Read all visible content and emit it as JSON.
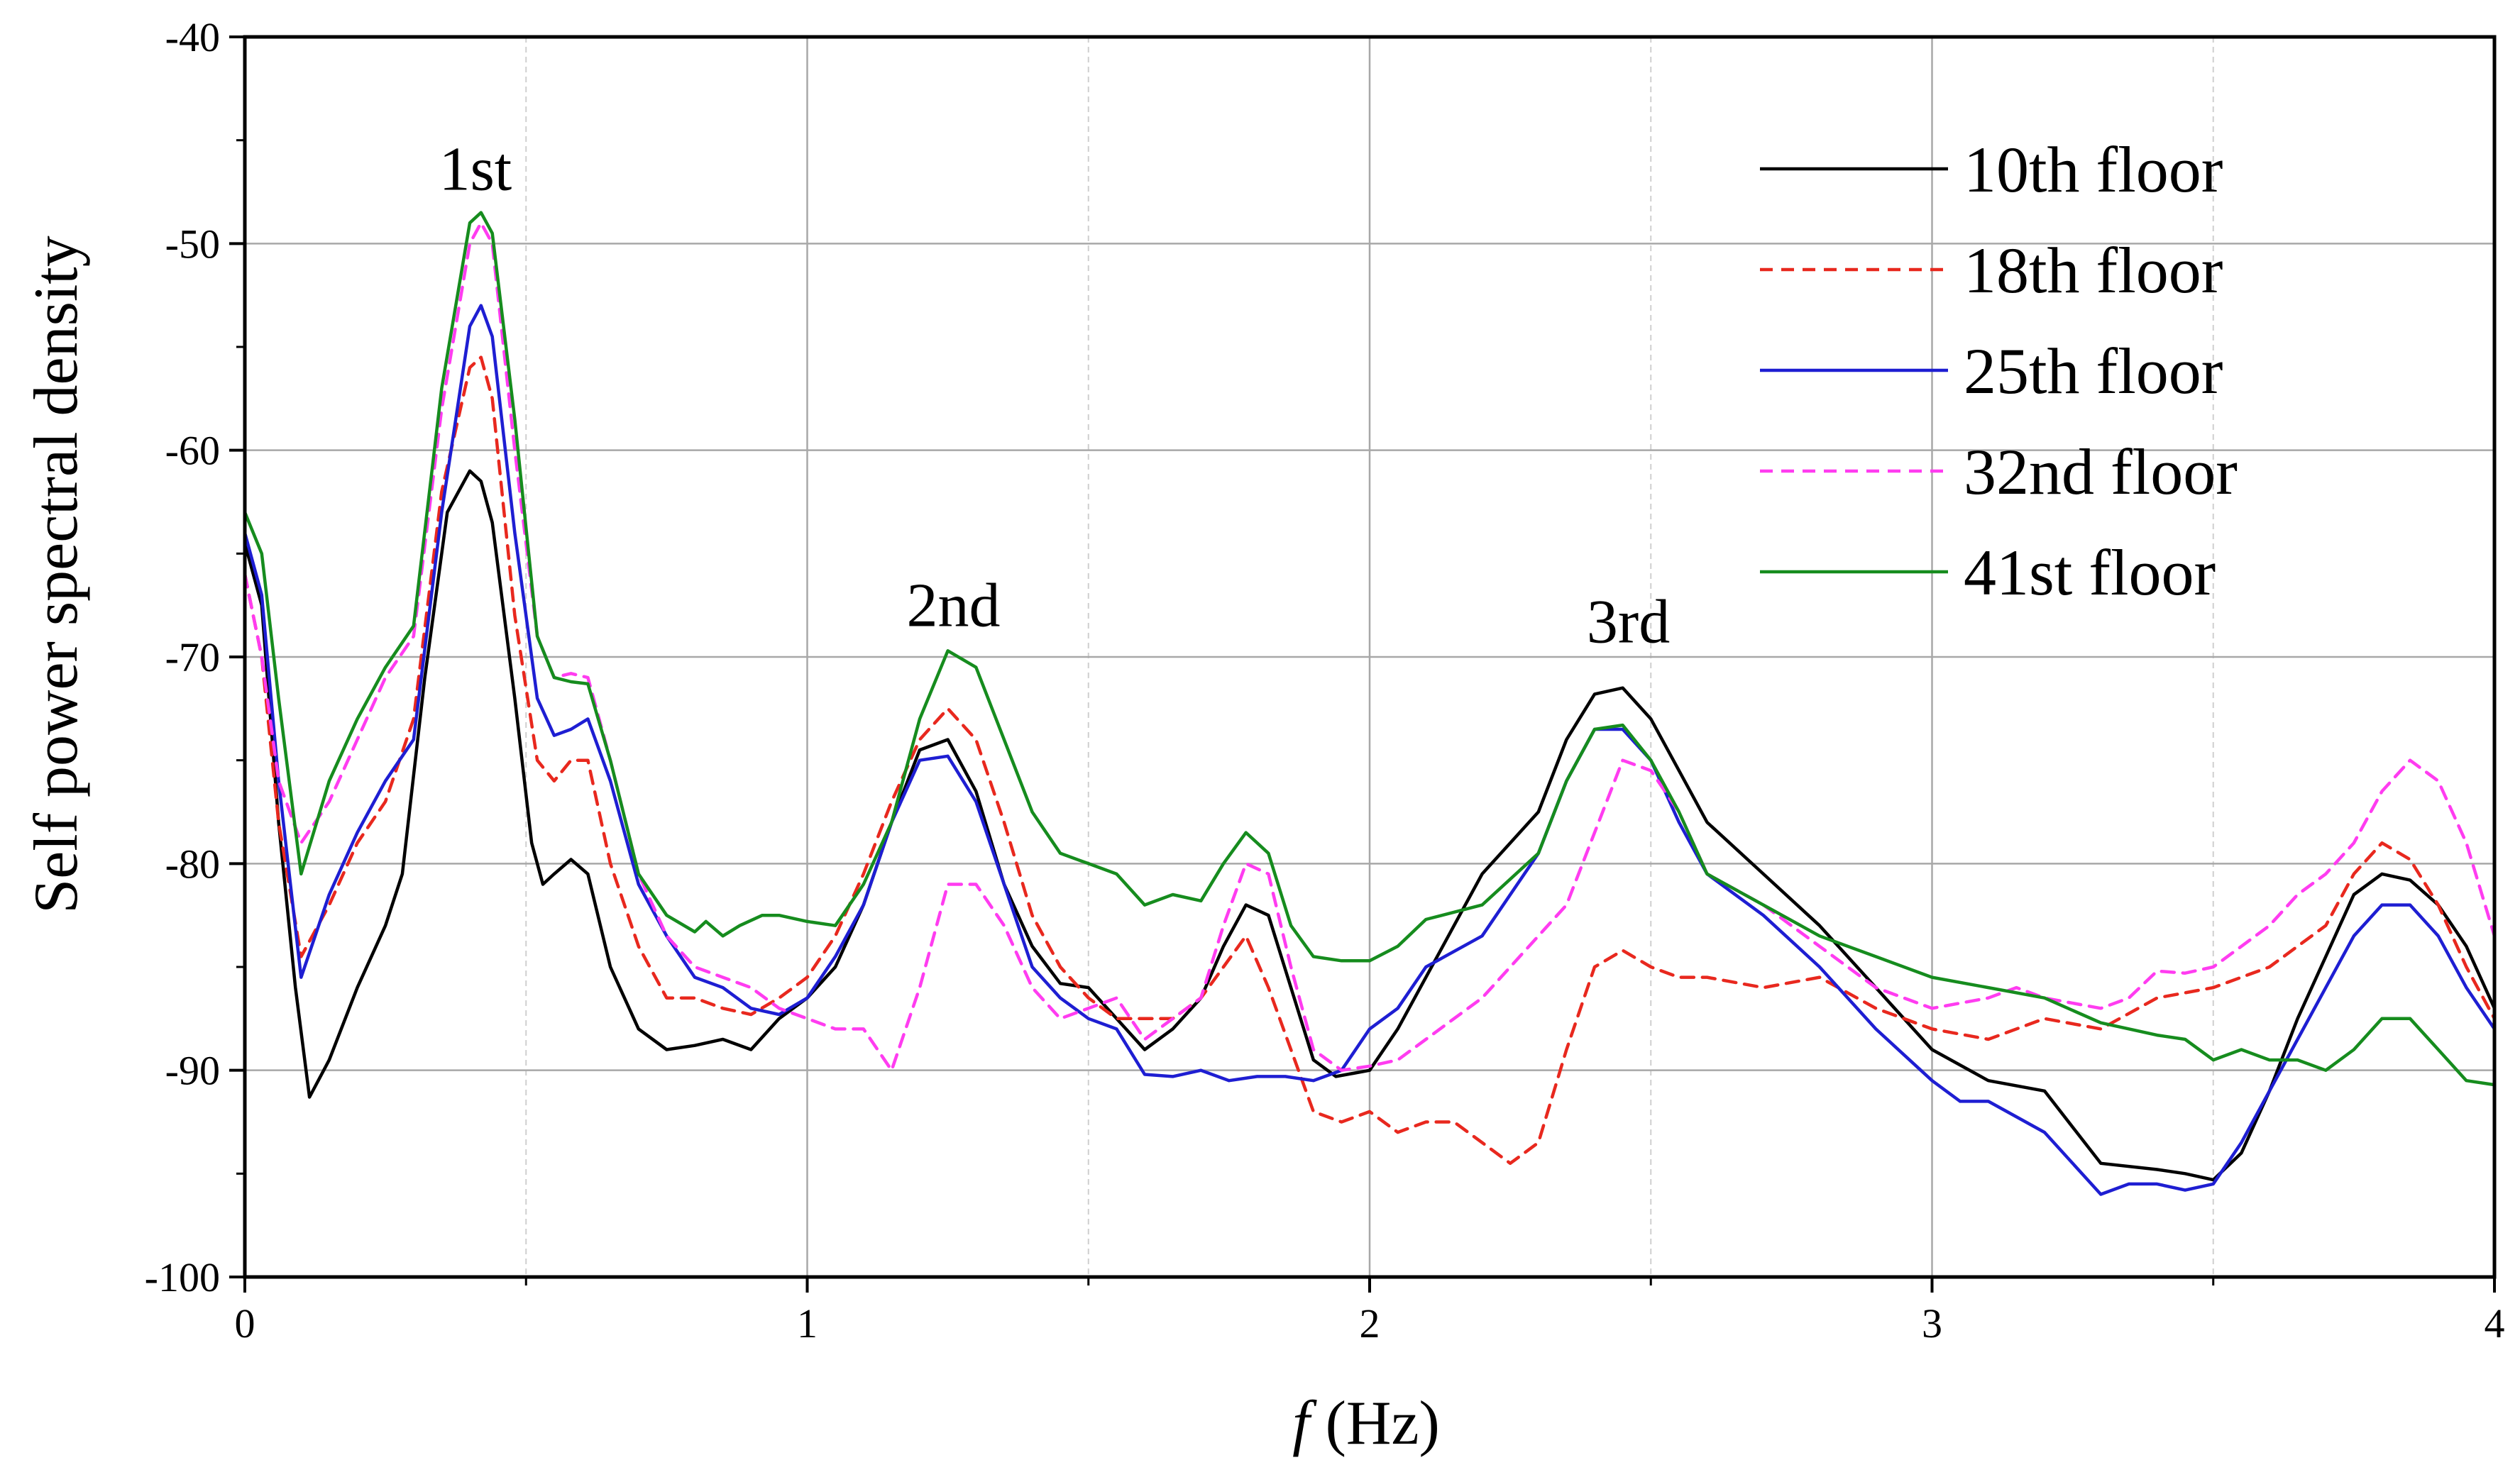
{
  "chart_data": {
    "type": "line",
    "xlabel_italic": "f",
    "xlabel_rest": " (Hz)",
    "ylabel": "Self power spectral density",
    "xlim": [
      0,
      4
    ],
    "ylim": [
      -100,
      -40
    ],
    "x_ticks": [
      "0",
      "1",
      "2",
      "3",
      "4"
    ],
    "y_ticks": [
      "-40",
      "-50",
      "-60",
      "-70",
      "-80",
      "-90",
      "-100"
    ],
    "x_tick_values": [
      0,
      1,
      2,
      3,
      4
    ],
    "y_tick_values": [
      -40,
      -50,
      -60,
      -70,
      -80,
      -90,
      -100
    ],
    "grid": true,
    "legend_position": "top-right",
    "annotations": [
      {
        "text": "1st",
        "x": 0.41,
        "y": -47.4
      },
      {
        "text": "2nd",
        "x": 1.26,
        "y": -68.5
      },
      {
        "text": "3rd",
        "x": 2.46,
        "y": -69.3
      }
    ],
    "series": [
      {
        "name": "10th floor",
        "color": "#000000",
        "dash": "solid",
        "x": [
          0,
          0.03,
          0.06,
          0.09,
          0.115,
          0.15,
          0.2,
          0.25,
          0.28,
          0.32,
          0.36,
          0.4,
          0.42,
          0.44,
          0.48,
          0.51,
          0.53,
          0.55,
          0.58,
          0.61,
          0.65,
          0.7,
          0.75,
          0.8,
          0.85,
          0.9,
          0.95,
          1.0,
          1.05,
          1.1,
          1.15,
          1.2,
          1.25,
          1.3,
          1.35,
          1.4,
          1.45,
          1.5,
          1.55,
          1.6,
          1.65,
          1.7,
          1.74,
          1.78,
          1.82,
          1.86,
          1.9,
          1.94,
          2.0,
          2.05,
          2.1,
          2.15,
          2.2,
          2.25,
          2.3,
          2.35,
          2.4,
          2.45,
          2.5,
          2.55,
          2.6,
          2.7,
          2.8,
          2.9,
          3.0,
          3.1,
          3.2,
          3.3,
          3.4,
          3.45,
          3.5,
          3.55,
          3.6,
          3.65,
          3.7,
          3.75,
          3.8,
          3.85,
          3.9,
          3.95,
          4.0
        ],
        "values": [
          -64.5,
          -67.5,
          -78,
          -86,
          -91.3,
          -89.5,
          -86,
          -83,
          -80.5,
          -71,
          -63,
          -61,
          -61.5,
          -63.5,
          -72,
          -79,
          -81,
          -80.5,
          -79.8,
          -80.5,
          -85,
          -88,
          -89,
          -88.8,
          -88.5,
          -89,
          -87.5,
          -86.5,
          -85,
          -82,
          -78,
          -74.5,
          -74,
          -76.5,
          -81,
          -84,
          -85.8,
          -86,
          -87.5,
          -89,
          -88,
          -86.5,
          -84,
          -82,
          -82.5,
          -86,
          -89.5,
          -90.3,
          -90,
          -88,
          -85.5,
          -83,
          -80.5,
          -79,
          -77.5,
          -74,
          -71.8,
          -71.5,
          -73,
          -75.5,
          -78,
          -80.5,
          -83,
          -86,
          -89,
          -90.5,
          -91,
          -94.5,
          -94.8,
          -95,
          -95.3,
          -94,
          -91,
          -87.5,
          -84.5,
          -81.5,
          -80.5,
          -80.8,
          -82,
          -84,
          -87
        ]
      },
      {
        "name": "18th floor",
        "color": "#e8281e",
        "dash": "dashed",
        "x": [
          0,
          0.03,
          0.06,
          0.1,
          0.15,
          0.2,
          0.25,
          0.3,
          0.35,
          0.4,
          0.42,
          0.44,
          0.48,
          0.52,
          0.55,
          0.58,
          0.61,
          0.65,
          0.7,
          0.75,
          0.8,
          0.85,
          0.9,
          0.95,
          1.0,
          1.05,
          1.1,
          1.15,
          1.2,
          1.25,
          1.3,
          1.35,
          1.4,
          1.45,
          1.5,
          1.55,
          1.6,
          1.65,
          1.7,
          1.74,
          1.78,
          1.82,
          1.86,
          1.9,
          1.95,
          2.0,
          2.05,
          2.1,
          2.15,
          2.2,
          2.25,
          2.3,
          2.35,
          2.4,
          2.45,
          2.5,
          2.55,
          2.6,
          2.7,
          2.8,
          2.9,
          3.0,
          3.1,
          3.2,
          3.3,
          3.4,
          3.5,
          3.6,
          3.7,
          3.75,
          3.8,
          3.85,
          3.9,
          3.95,
          4.0
        ],
        "values": [
          -66,
          -70,
          -78,
          -84.5,
          -82,
          -79,
          -77,
          -73,
          -62,
          -56,
          -55.5,
          -57.5,
          -68,
          -75,
          -76,
          -75,
          -75,
          -80,
          -84,
          -86.5,
          -86.5,
          -87,
          -87.3,
          -86.5,
          -85.5,
          -83.5,
          -80.5,
          -77,
          -74,
          -72.5,
          -74,
          -78,
          -82.5,
          -85,
          -86.5,
          -87.5,
          -87.5,
          -87.5,
          -86.5,
          -85,
          -83.5,
          -86,
          -89,
          -92,
          -92.5,
          -92,
          -93,
          -92.5,
          -92.5,
          -93.5,
          -94.5,
          -93.5,
          -89,
          -85,
          -84.2,
          -85,
          -85.5,
          -85.5,
          -86,
          -85.5,
          -87,
          -88,
          -88.5,
          -87.5,
          -88,
          -86.5,
          -86,
          -85,
          -83,
          -80.5,
          -79,
          -79.8,
          -82,
          -85,
          -87.5
        ]
      },
      {
        "name": "25th floor",
        "color": "#1e1ed2",
        "dash": "solid",
        "x": [
          0,
          0.03,
          0.06,
          0.1,
          0.15,
          0.2,
          0.25,
          0.3,
          0.35,
          0.4,
          0.42,
          0.44,
          0.48,
          0.52,
          0.55,
          0.58,
          0.61,
          0.65,
          0.7,
          0.75,
          0.8,
          0.85,
          0.9,
          0.95,
          1.0,
          1.05,
          1.1,
          1.15,
          1.2,
          1.25,
          1.3,
          1.35,
          1.4,
          1.45,
          1.5,
          1.55,
          1.6,
          1.65,
          1.7,
          1.75,
          1.8,
          1.85,
          1.9,
          1.95,
          2.0,
          2.05,
          2.1,
          2.2,
          2.3,
          2.35,
          2.4,
          2.45,
          2.5,
          2.55,
          2.6,
          2.7,
          2.8,
          2.9,
          3.0,
          3.05,
          3.1,
          3.2,
          3.25,
          3.3,
          3.35,
          3.4,
          3.45,
          3.5,
          3.55,
          3.6,
          3.65,
          3.7,
          3.75,
          3.8,
          3.85,
          3.9,
          3.95,
          4.0
        ],
        "values": [
          -64,
          -67,
          -76,
          -85.5,
          -81.5,
          -78.5,
          -76,
          -74,
          -63,
          -54,
          -53,
          -54.5,
          -64,
          -72,
          -73.8,
          -73.5,
          -73,
          -76,
          -81,
          -83.5,
          -85.5,
          -86,
          -87,
          -87.3,
          -86.5,
          -84.5,
          -82,
          -78,
          -75,
          -74.8,
          -77,
          -81,
          -85,
          -86.5,
          -87.5,
          -88,
          -90.2,
          -90.3,
          -90,
          -90.5,
          -90.3,
          -90.3,
          -90.5,
          -90,
          -88,
          -87,
          -85,
          -83.5,
          -79.5,
          -76,
          -73.5,
          -73.5,
          -75,
          -78,
          -80.5,
          -82.5,
          -85,
          -88,
          -90.5,
          -91.5,
          -91.5,
          -93,
          -94.5,
          -96,
          -95.5,
          -95.5,
          -95.8,
          -95.5,
          -93.5,
          -91,
          -88.5,
          -86,
          -83.5,
          -82,
          -82,
          -83.5,
          -86,
          -88
        ]
      },
      {
        "name": "32nd floor",
        "color": "#ff3cf0",
        "dash": "dashed",
        "x": [
          0,
          0.03,
          0.06,
          0.1,
          0.15,
          0.2,
          0.25,
          0.3,
          0.35,
          0.4,
          0.42,
          0.44,
          0.48,
          0.52,
          0.55,
          0.58,
          0.61,
          0.65,
          0.7,
          0.75,
          0.8,
          0.85,
          0.9,
          0.95,
          1.0,
          1.05,
          1.1,
          1.15,
          1.2,
          1.25,
          1.3,
          1.35,
          1.4,
          1.45,
          1.5,
          1.55,
          1.6,
          1.65,
          1.7,
          1.74,
          1.78,
          1.82,
          1.86,
          1.9,
          1.95,
          2.0,
          2.05,
          2.1,
          2.2,
          2.3,
          2.35,
          2.4,
          2.45,
          2.5,
          2.55,
          2.6,
          2.7,
          2.8,
          2.9,
          3.0,
          3.1,
          3.15,
          3.2,
          3.3,
          3.35,
          3.4,
          3.45,
          3.5,
          3.55,
          3.6,
          3.65,
          3.7,
          3.75,
          3.8,
          3.85,
          3.9,
          3.95,
          4.0
        ],
        "values": [
          -66,
          -70,
          -76,
          -79,
          -77,
          -74,
          -71,
          -69,
          -58,
          -50,
          -49,
          -50,
          -60,
          -69,
          -71,
          -70.8,
          -71,
          -75,
          -80.5,
          -83.5,
          -85,
          -85.5,
          -86,
          -87,
          -87.5,
          -88,
          -88,
          -90,
          -86,
          -81,
          -81,
          -83,
          -86,
          -87.5,
          -87,
          -86.5,
          -88.5,
          -87.5,
          -86.5,
          -83,
          -80,
          -80.5,
          -85,
          -89,
          -90,
          -89.8,
          -89.5,
          -88.5,
          -86.5,
          -83.5,
          -82,
          -78.5,
          -75,
          -75.5,
          -77.5,
          -80.5,
          -82,
          -84,
          -86,
          -87,
          -86.5,
          -86,
          -86.5,
          -87,
          -86.5,
          -85.2,
          -85.3,
          -85,
          -84,
          -83,
          -81.5,
          -80.5,
          -79,
          -76.5,
          -75,
          -76,
          -79,
          -83.5
        ]
      },
      {
        "name": "41st floor",
        "color": "#168c1e",
        "dash": "solid",
        "x": [
          0,
          0.03,
          0.06,
          0.1,
          0.15,
          0.2,
          0.25,
          0.3,
          0.35,
          0.4,
          0.42,
          0.44,
          0.48,
          0.52,
          0.55,
          0.58,
          0.61,
          0.65,
          0.7,
          0.75,
          0.8,
          0.82,
          0.85,
          0.88,
          0.92,
          0.95,
          1.0,
          1.05,
          1.1,
          1.15,
          1.2,
          1.25,
          1.3,
          1.35,
          1.4,
          1.45,
          1.5,
          1.55,
          1.6,
          1.65,
          1.7,
          1.74,
          1.78,
          1.82,
          1.86,
          1.9,
          1.95,
          2.0,
          2.05,
          2.1,
          2.2,
          2.3,
          2.35,
          2.4,
          2.45,
          2.5,
          2.55,
          2.6,
          2.7,
          2.8,
          2.9,
          3.0,
          3.1,
          3.2,
          3.3,
          3.4,
          3.45,
          3.5,
          3.55,
          3.6,
          3.65,
          3.7,
          3.75,
          3.8,
          3.85,
          3.9,
          3.95,
          4.0
        ],
        "values": [
          -63,
          -65,
          -72,
          -80.5,
          -76,
          -73,
          -70.5,
          -68.5,
          -57,
          -49,
          -48.5,
          -49.5,
          -58.5,
          -69,
          -71,
          -71.2,
          -71.3,
          -75,
          -80.5,
          -82.5,
          -83.3,
          -82.8,
          -83.5,
          -83,
          -82.5,
          -82.5,
          -82.8,
          -83,
          -81,
          -78,
          -73,
          -69.7,
          -70.5,
          -74,
          -77.5,
          -79.5,
          -80,
          -80.5,
          -82,
          -81.5,
          -81.8,
          -80,
          -78.5,
          -79.5,
          -83,
          -84.5,
          -84.7,
          -84.7,
          -84,
          -82.7,
          -82,
          -79.5,
          -76,
          -73.5,
          -73.3,
          -75,
          -77.5,
          -80.5,
          -82,
          -83.5,
          -84.5,
          -85.5,
          -86,
          -86.5,
          -87.7,
          -88.3,
          -88.5,
          -89.5,
          -89,
          -89.5,
          -89.5,
          -90,
          -89,
          -87.5,
          -87.5,
          -89,
          -90.5,
          -90.7
        ]
      }
    ]
  }
}
